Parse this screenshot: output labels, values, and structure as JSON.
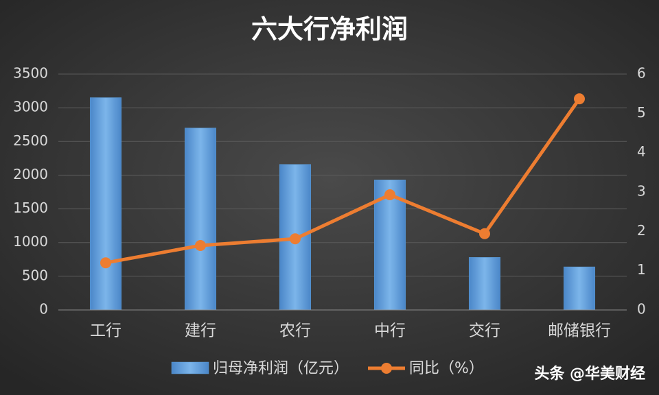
{
  "chart_data": {
    "type": "combo",
    "title": "六大行净利润",
    "categories": [
      "工行",
      "建行",
      "农行",
      "中行",
      "交行",
      "邮储银行"
    ],
    "series": [
      {
        "name": "归母净利润（亿元）",
        "type": "bar",
        "color": "#5b9bd5",
        "values": [
          3150,
          2700,
          2160,
          1930,
          780,
          640
        ]
      },
      {
        "name": "同比（%）",
        "type": "line",
        "axis": "y2",
        "color": "#ed7d31",
        "values": [
          1.2,
          1.64,
          1.81,
          2.93,
          1.94,
          5.37
        ]
      }
    ],
    "ylim": [
      0,
      3500
    ],
    "yticks": [
      0,
      500,
      1000,
      1500,
      2000,
      2500,
      3000,
      3500
    ],
    "y2lim": [
      0,
      6
    ],
    "y2ticks": [
      0,
      1,
      2,
      3,
      4,
      5,
      6
    ],
    "grid": true,
    "legend": "bottom"
  },
  "watermark": "头条 @华美财经"
}
